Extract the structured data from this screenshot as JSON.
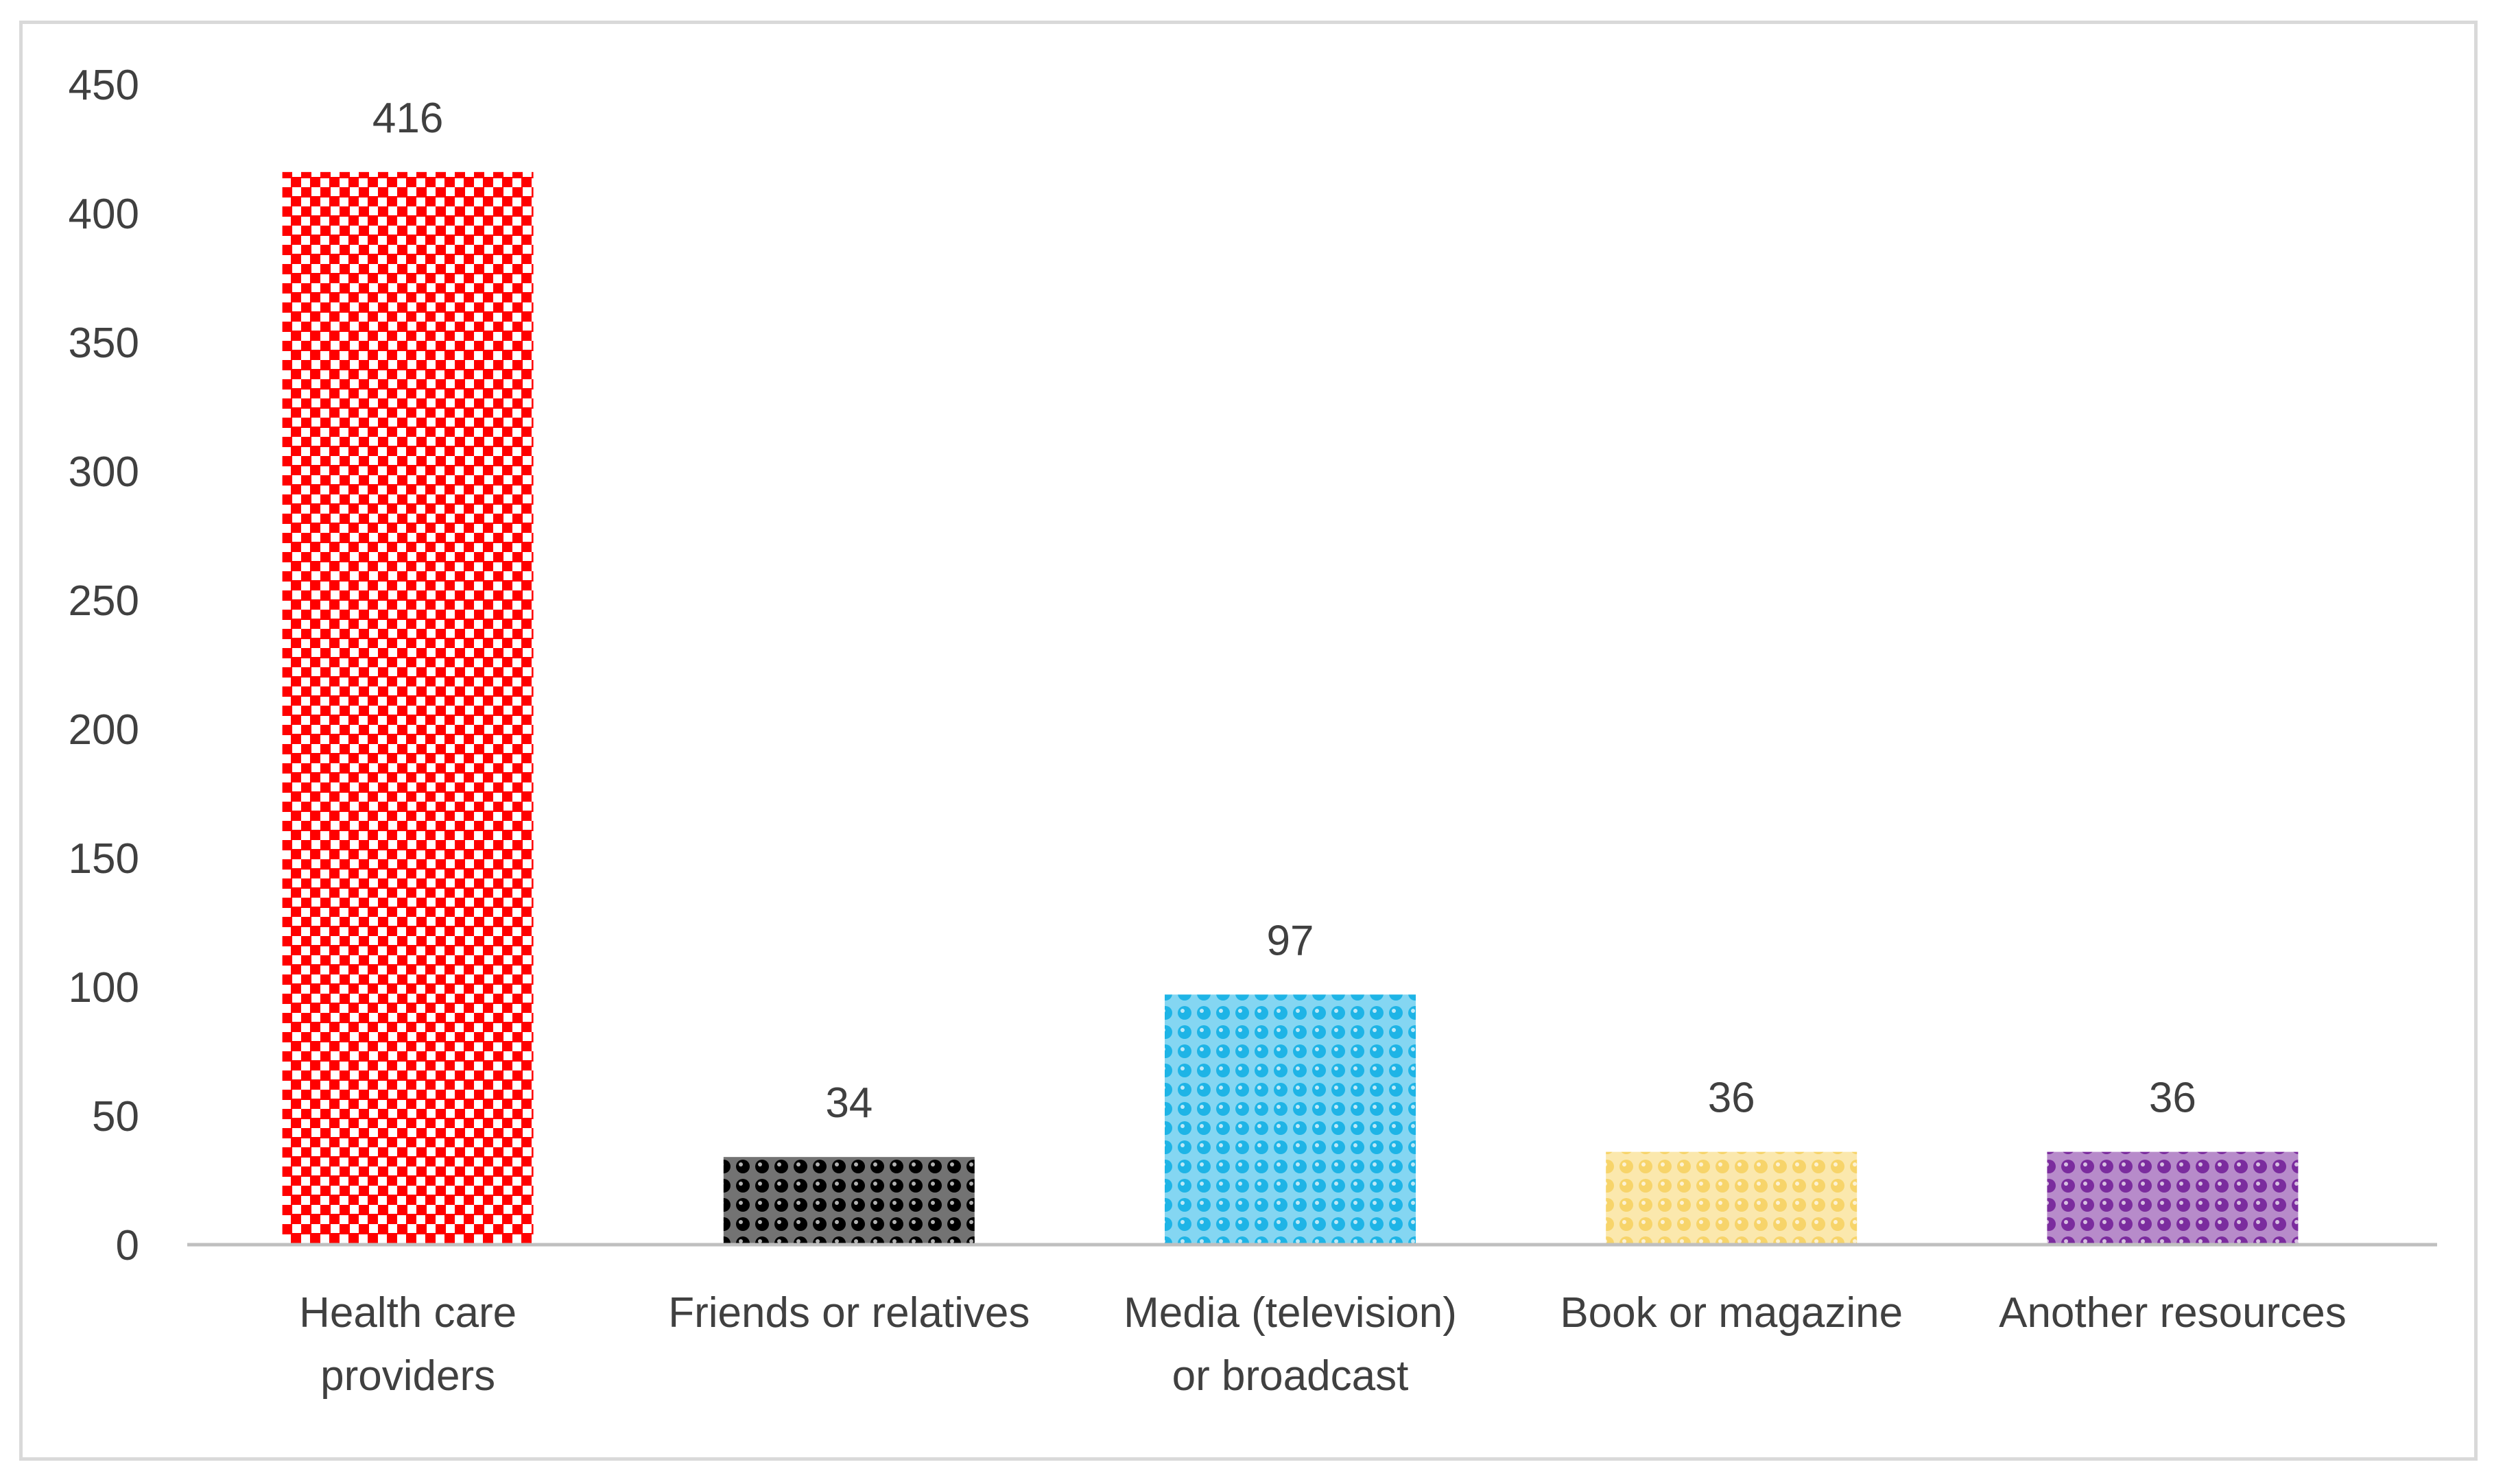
{
  "chart_data": {
    "type": "bar",
    "title": "",
    "xlabel": "",
    "ylabel": "",
    "categories": [
      [
        "Health care",
        "providers"
      ],
      [
        "Friends or relatives"
      ],
      [
        "Media (television)",
        "or broadcast"
      ],
      [
        "Book or magazine"
      ],
      [
        "Another resources"
      ]
    ],
    "values": [
      416,
      34,
      97,
      36,
      36
    ],
    "ylim": [
      0,
      450
    ],
    "yticks": [
      "0",
      "50",
      "100",
      "150",
      "200",
      "250",
      "300",
      "350",
      "400",
      "450"
    ],
    "data_labels": [
      "416",
      "34",
      "97",
      "36",
      "36"
    ],
    "grid": false,
    "legend": "none",
    "bar_colors": [
      "#ff0000",
      "#000000",
      "#1eb4e6",
      "#f7d46a",
      "#7b2c9e"
    ],
    "bar_patterns": [
      "checker",
      "dots",
      "dots",
      "dots",
      "dots"
    ]
  }
}
